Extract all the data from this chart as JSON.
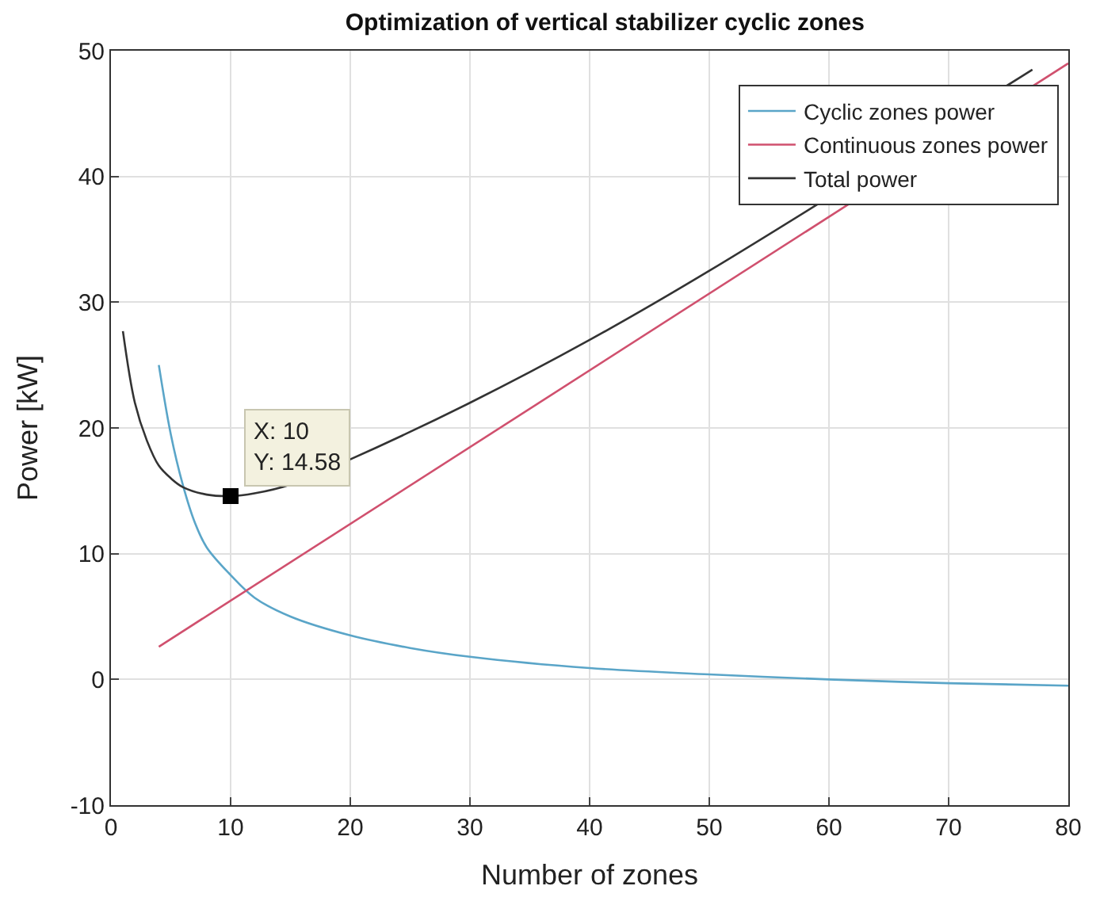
{
  "chart_data": {
    "type": "line",
    "title": "Optimization of vertical stabilizer cyclic zones",
    "xlabel": "Number of zones",
    "ylabel": "Power [kW]",
    "xlim": [
      0,
      80
    ],
    "xticks": [
      0,
      10,
      20,
      30,
      40,
      50,
      60,
      70,
      80
    ],
    "ylim": [
      -10,
      50
    ],
    "yticks": [
      -10,
      0,
      10,
      20,
      30,
      40,
      50
    ],
    "grid": true,
    "legend": "top right",
    "marker": "none",
    "line_style": "solid",
    "series": [
      {
        "name": "Cyclic zones power",
        "color": "#5aa5c8",
        "x": [
          4,
          5,
          6,
          7,
          8,
          10,
          12,
          15,
          20,
          25,
          30,
          40,
          50,
          60,
          70,
          80
        ],
        "values": [
          25,
          19.5,
          15.5,
          12.5,
          10.5,
          8.3,
          6.5,
          5,
          3.5,
          2.5,
          1.8,
          0.9,
          0.4,
          0.0,
          -0.3,
          -0.5
        ]
      },
      {
        "name": "Continuous zones power",
        "color": "#d0506e",
        "x": [
          4,
          80
        ],
        "values": [
          2.6,
          49
        ]
      },
      {
        "name": "Total power",
        "color": "#333333",
        "x": [
          1,
          2,
          3,
          4,
          5,
          6,
          8,
          10,
          12,
          15,
          20,
          30,
          40,
          50,
          77
        ],
        "values": [
          27.7,
          22,
          19,
          17,
          16,
          15.3,
          14.7,
          14.58,
          14.8,
          15.5,
          17.5,
          22,
          27,
          32.5,
          48.5
        ]
      },
      {
        "type": "scatter",
        "marker": "square",
        "color": "#000000",
        "x": [
          10
        ],
        "values": [
          14.58
        ]
      }
    ],
    "annotations": [
      {
        "text": "X: 10\nY: 14.58",
        "x": 10,
        "y": 14.58
      }
    ]
  }
}
